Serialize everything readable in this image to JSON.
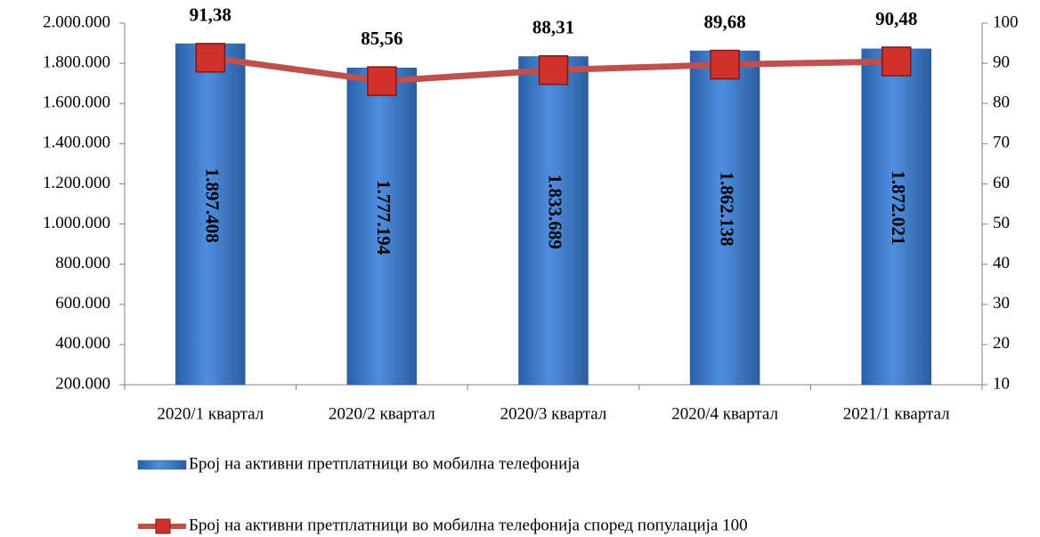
{
  "chart_data": {
    "type": "bar",
    "categories": [
      "2020/1 квартал",
      "2020/2 квартал",
      "2020/3 квартал",
      "2020/4 квартал",
      "2021/1 квартал"
    ],
    "series": [
      {
        "name": "Број на активни претплатници во мобилна телефонија",
        "type": "bar",
        "color": "#3f7fd4",
        "values": [
          1897408,
          1777194,
          1833689,
          1862138,
          1872021
        ],
        "value_labels": [
          "1.897.408",
          "1.777.194",
          "1.833.689",
          "1.862.138",
          "1.872.021"
        ]
      },
      {
        "name": "Број на активни претплатници во мобилна телефонија според популација 100",
        "type": "line",
        "axis": "y2",
        "color": "#c0504d",
        "values": [
          91.38,
          85.56,
          88.31,
          89.68,
          90.48
        ],
        "value_labels": [
          "91,38",
          "85,56",
          "88,31",
          "89,68",
          "90,48"
        ]
      }
    ],
    "ylim": [
      200000,
      2000000
    ],
    "yticks": [
      {
        "value": 200000,
        "label": "200.000"
      },
      {
        "value": 400000,
        "label": "400.000"
      },
      {
        "value": 600000,
        "label": "600.000"
      },
      {
        "value": 800000,
        "label": "800.000"
      },
      {
        "value": 1000000,
        "label": "1.000.000"
      },
      {
        "value": 1200000,
        "label": "1.200.000"
      },
      {
        "value": 1400000,
        "label": "1.400.000"
      },
      {
        "value": 1600000,
        "label": "1.600.000"
      },
      {
        "value": 1800000,
        "label": "1.800.000"
      },
      {
        "value": 2000000,
        "label": "2.000.000"
      }
    ],
    "y2lim": [
      10,
      100
    ],
    "y2ticks": [
      10,
      20,
      30,
      40,
      50,
      60,
      70,
      80,
      90,
      100
    ],
    "legend": "bottom"
  }
}
